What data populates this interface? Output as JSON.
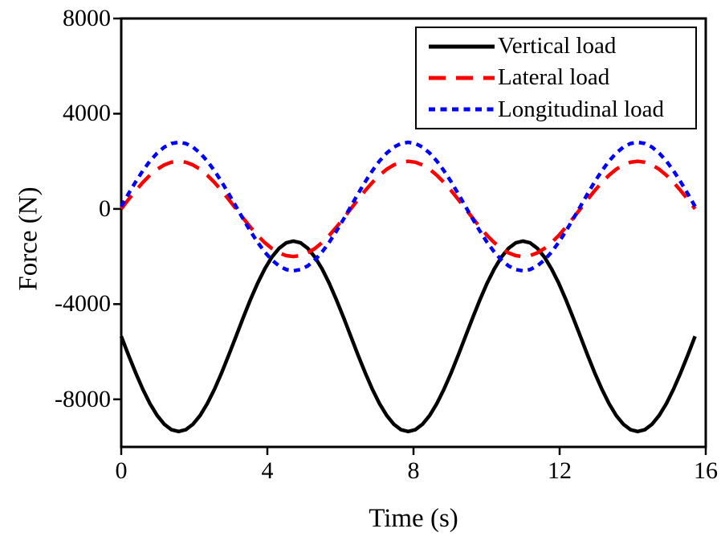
{
  "chart_data": {
    "type": "line",
    "title": "",
    "xlabel": "Time (s)",
    "ylabel": "Force (N)",
    "xlim": [
      0,
      16
    ],
    "ylim": [
      -10000,
      8000
    ],
    "xticks": [
      0,
      4,
      8,
      12,
      16
    ],
    "yticks": [
      8000,
      4000,
      0,
      -4000,
      -8000
    ],
    "xtick_labels": [
      "0",
      "4",
      "8",
      "12",
      "16"
    ],
    "ytick_labels": [
      "8000",
      "4000",
      "0",
      "-4000",
      "-8000"
    ],
    "grid": false,
    "legend_position": "top-right",
    "frame_color": "#000000",
    "x": [
      0,
      0.196,
      0.393,
      0.589,
      0.785,
      0.982,
      1.178,
      1.374,
      1.571,
      1.767,
      1.963,
      2.16,
      2.356,
      2.553,
      2.749,
      2.945,
      3.142,
      3.338,
      3.534,
      3.731,
      3.927,
      4.123,
      4.32,
      4.516,
      4.712,
      4.909,
      5.105,
      5.301,
      5.498,
      5.694,
      5.89,
      6.087,
      6.283,
      6.48,
      6.676,
      6.872,
      7.069,
      7.265,
      7.461,
      7.658,
      7.854,
      8.05,
      8.247,
      8.443,
      8.639,
      8.836,
      9.032,
      9.228,
      9.425,
      9.621,
      9.817,
      10.014,
      10.21,
      10.407,
      10.603,
      10.799,
      10.996,
      11.192,
      11.388,
      11.585,
      11.781,
      11.977,
      12.174,
      12.37,
      12.566,
      12.763,
      12.959,
      13.155,
      13.352,
      13.548,
      13.744,
      13.941,
      14.137,
      14.334,
      14.53,
      14.726,
      14.923,
      15.119,
      15.315,
      15.512,
      15.708
    ],
    "series": [
      {
        "name": "Vertical load",
        "color": "#000000",
        "style": "solid",
        "values": [
          -5350,
          -6130,
          -6881,
          -7572,
          -8178,
          -8676,
          -9046,
          -9273,
          -9350,
          -9273,
          -9046,
          -8676,
          -8178,
          -7572,
          -6881,
          -6130,
          -5350,
          -4570,
          -3819,
          -3128,
          -2522,
          -2024,
          -1654,
          -1427,
          -1350,
          -1427,
          -1654,
          -2024,
          -2522,
          -3128,
          -3819,
          -4570,
          -5350,
          -6130,
          -6881,
          -7572,
          -8178,
          -8676,
          -9046,
          -9273,
          -9350,
          -9273,
          -9046,
          -8676,
          -8178,
          -7572,
          -6881,
          -6130,
          -5350,
          -4570,
          -3819,
          -3128,
          -2522,
          -2024,
          -1654,
          -1427,
          -1350,
          -1427,
          -1654,
          -2024,
          -2522,
          -3128,
          -3819,
          -4570,
          -5350,
          -6130,
          -6881,
          -7572,
          -8178,
          -8676,
          -9046,
          -9273,
          -9350,
          -9273,
          -9046,
          -8676,
          -8178,
          -7572,
          -6881,
          -6130,
          -5350
        ]
      },
      {
        "name": "Lateral load",
        "color": "#ff0000",
        "style": "dash",
        "values": [
          0,
          390,
          765,
          1111,
          1414,
          1663,
          1848,
          1962,
          2000,
          1962,
          1848,
          1663,
          1414,
          1111,
          765,
          390,
          0,
          -390,
          -765,
          -1111,
          -1414,
          -1663,
          -1848,
          -1962,
          -2000,
          -1962,
          -1848,
          -1663,
          -1414,
          -1111,
          -765,
          -390,
          0,
          390,
          765,
          1111,
          1414,
          1663,
          1848,
          1962,
          2000,
          1962,
          1848,
          1663,
          1414,
          1111,
          765,
          390,
          0,
          -390,
          -765,
          -1111,
          -1414,
          -1663,
          -1848,
          -1962,
          -2000,
          -1962,
          -1848,
          -1663,
          -1414,
          -1111,
          -765,
          -390,
          0,
          390,
          765,
          1111,
          1414,
          1663,
          1848,
          1962,
          2000,
          1962,
          1848,
          1663,
          1414,
          1111,
          765,
          390,
          0
        ]
      },
      {
        "name": "Longitudinal load",
        "color": "#0000ff",
        "style": "dot",
        "values": [
          100,
          627,
          1133,
          1600,
          2009,
          2345,
          2595,
          2748,
          2800,
          2748,
          2595,
          2345,
          2009,
          1600,
          1133,
          627,
          100,
          -427,
          -933,
          -1400,
          -1809,
          -2145,
          -2395,
          -2548,
          -2600,
          -2548,
          -2395,
          -2145,
          -1809,
          -1400,
          -933,
          -427,
          100,
          627,
          1133,
          1600,
          2009,
          2345,
          2595,
          2748,
          2800,
          2748,
          2595,
          2345,
          2009,
          1600,
          1133,
          627,
          100,
          -427,
          -933,
          -1400,
          -1809,
          -2145,
          -2395,
          -2548,
          -2600,
          -2548,
          -2395,
          -2145,
          -1809,
          -1400,
          -933,
          -427,
          100,
          627,
          1133,
          1600,
          2009,
          2345,
          2595,
          2748,
          2800,
          2748,
          2595,
          2345,
          2009,
          1600,
          1133,
          627,
          100
        ]
      }
    ]
  }
}
